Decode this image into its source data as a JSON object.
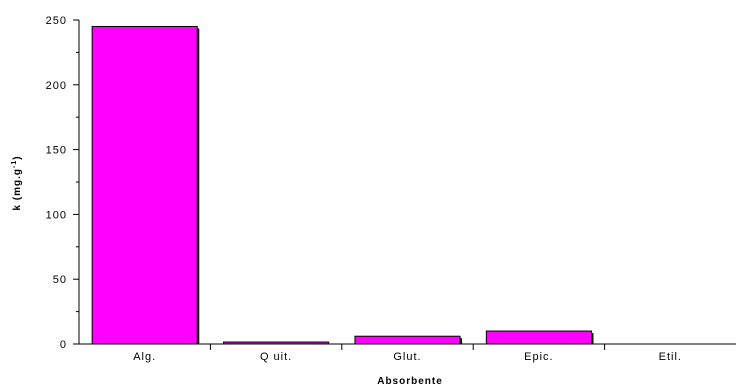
{
  "chart_data": {
    "type": "bar",
    "title": "",
    "xlabel": "Absorbente",
    "ylabel_main": "k (mg.g",
    "ylabel_sup": "-1",
    "ylabel_close": ")",
    "categories": [
      "Alg.",
      "Q uit.",
      "Glut.",
      "Epic.",
      "Etil."
    ],
    "values": [
      245,
      1.5,
      6,
      10,
      0
    ],
    "ylim": [
      0,
      250
    ],
    "yticks": [
      "0",
      "50",
      "100",
      "150",
      "200",
      "250"
    ],
    "colors": {
      "bar_fill": "#ff00ff",
      "bar_stroke": "#000000",
      "shadow": "#000000"
    }
  }
}
